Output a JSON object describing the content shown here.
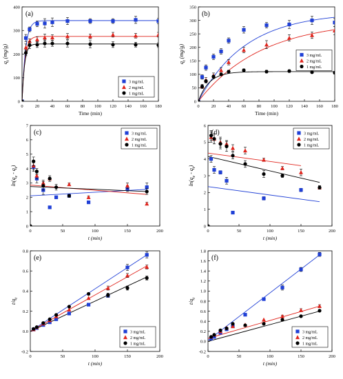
{
  "chart_data": [
    {
      "id": "a",
      "type": "scatter",
      "panel_label": "(a)",
      "xlabel": "Time (min)",
      "ylabel": "q_t (mg/g)",
      "xlim": [
        0,
        180
      ],
      "ylim": [
        0,
        400
      ],
      "xticks": [
        0,
        20,
        40,
        60,
        80,
        100,
        120,
        140,
        160,
        180
      ],
      "yticks": [
        0,
        100,
        200,
        300,
        400
      ],
      "legend": {
        "position": "bottom-right"
      },
      "series": [
        {
          "name": "3 mg/mL",
          "color": "#1f3fd6",
          "marker": "square",
          "x": [
            0,
            5,
            10,
            20,
            30,
            40,
            60,
            90,
            120,
            150,
            180
          ],
          "y": [
            0,
            268,
            305,
            328,
            330,
            335,
            340,
            340,
            340,
            345,
            340
          ],
          "err": [
            0,
            15,
            10,
            12,
            20,
            18,
            15,
            10,
            10,
            15,
            12
          ],
          "fit": {
            "kind": "pfo",
            "qe": 342,
            "k": 0.22
          }
        },
        {
          "name": "2 mg/mL",
          "color": "#e0241c",
          "marker": "triangle",
          "x": [
            0,
            5,
            10,
            20,
            30,
            40,
            60,
            90,
            120,
            150,
            180
          ],
          "y": [
            0,
            228,
            255,
            262,
            270,
            270,
            275,
            275,
            282,
            278,
            282
          ],
          "err": [
            0,
            15,
            10,
            12,
            15,
            12,
            12,
            10,
            10,
            10,
            10
          ],
          "fit": {
            "kind": "pfo",
            "qe": 275,
            "k": 0.26
          }
        },
        {
          "name": "1 mg/mL",
          "color": "#000000",
          "marker": "circle",
          "x": [
            0,
            5,
            10,
            20,
            30,
            40,
            60,
            90,
            120,
            150,
            180
          ],
          "y": [
            0,
            205,
            238,
            240,
            245,
            245,
            245,
            242,
            240,
            240,
            238
          ],
          "err": [
            0,
            12,
            15,
            12,
            15,
            12,
            15,
            15,
            12,
            10,
            10
          ],
          "fit": {
            "kind": "pfo",
            "qe": 243,
            "k": 0.3
          }
        }
      ]
    },
    {
      "id": "b",
      "type": "scatter",
      "panel_label": "(b)",
      "xlabel": "Time (min)",
      "ylabel": "q_t (mg/g)",
      "xlim": [
        0,
        180
      ],
      "ylim": [
        0,
        350
      ],
      "xticks": [
        0,
        20,
        40,
        60,
        80,
        100,
        120,
        140,
        160,
        180
      ],
      "yticks": [
        0,
        50,
        100,
        150,
        200,
        250,
        300,
        350
      ],
      "legend": {
        "position": "center-right"
      },
      "series": [
        {
          "name": "3 mg/mL",
          "color": "#1f3fd6",
          "marker": "square",
          "x": [
            0,
            5,
            10,
            20,
            30,
            40,
            60,
            90,
            120,
            150,
            180
          ],
          "y": [
            0,
            90,
            125,
            165,
            185,
            225,
            265,
            282,
            285,
            300,
            292
          ],
          "err": [
            0,
            8,
            10,
            10,
            10,
            10,
            12,
            10,
            15,
            15,
            15
          ],
          "fit": {
            "kind": "pfo",
            "qe": 330,
            "k": 0.016
          }
        },
        {
          "name": "2 mg/mL",
          "color": "#e0241c",
          "marker": "triangle",
          "x": [
            0,
            5,
            10,
            20,
            30,
            40,
            60,
            90,
            120,
            150,
            180
          ],
          "y": [
            0,
            55,
            78,
            95,
            115,
            145,
            190,
            210,
            235,
            245,
            262
          ],
          "err": [
            0,
            8,
            10,
            10,
            10,
            10,
            10,
            15,
            12,
            12,
            15
          ],
          "fit": {
            "kind": "pfo",
            "qe": 300,
            "k": 0.012
          }
        },
        {
          "name": "1 mg/mL",
          "color": "#000000",
          "marker": "circle",
          "x": [
            0,
            5,
            10,
            20,
            30,
            40,
            60,
            90,
            120,
            150,
            180
          ],
          "y": [
            0,
            55,
            75,
            92,
            100,
            110,
            115,
            110,
            112,
            108,
            106
          ],
          "err": [
            0,
            5,
            5,
            5,
            5,
            5,
            5,
            5,
            5,
            5,
            5
          ],
          "fit": {
            "kind": "pfo",
            "qe": 110,
            "k": 0.07
          }
        }
      ]
    },
    {
      "id": "c",
      "type": "scatter",
      "panel_label": "(c)",
      "xlabel": "t (min)",
      "ylabel": "ln(q_e - q_t)",
      "xlim": [
        0,
        200
      ],
      "ylim": [
        0,
        7
      ],
      "xticks": [
        0,
        50,
        100,
        150,
        200
      ],
      "yticks": [
        0,
        1,
        2,
        3,
        4,
        5,
        6,
        7
      ],
      "legend": {
        "position": "top-right"
      },
      "series": [
        {
          "name": "3 mg/mL",
          "color": "#1f3fd6",
          "marker": "square",
          "x": [
            5,
            10,
            20,
            30,
            40,
            60,
            90,
            150,
            180
          ],
          "y": [
            4.1,
            3.3,
            2.5,
            1.3,
            2.0,
            2.1,
            1.65,
            2.6,
            2.7
          ],
          "err": [
            0.3,
            0.3,
            0.3,
            0,
            0.1,
            0,
            0.1,
            0.2,
            0.3
          ],
          "fit": {
            "kind": "linear",
            "x": [
              0,
              180
            ],
            "y": [
              2.1,
              2.55
            ]
          }
        },
        {
          "name": "2 mg/mL",
          "color": "#e0241c",
          "marker": "triangle",
          "x": [
            5,
            10,
            20,
            30,
            60,
            90,
            150,
            180
          ],
          "y": [
            4.2,
            3.5,
            3.0,
            3.3,
            2.9,
            2.0,
            2.8,
            1.55
          ],
          "err": [
            0.3,
            0.2,
            0.2,
            0.1,
            0.1,
            0.1,
            0.2,
            0.1
          ],
          "fit": {
            "kind": "linear",
            "x": [
              0,
              180
            ],
            "y": [
              2.85,
              2.2
            ]
          }
        },
        {
          "name": "1 mg/mL",
          "color": "#000000",
          "marker": "circle",
          "x": [
            0,
            5,
            10,
            20,
            30,
            40,
            60,
            180
          ],
          "y": [
            0,
            4.5,
            3.8,
            2.8,
            3.3,
            2.7,
            2.1,
            2.4
          ],
          "err": [
            0,
            0.3,
            0.2,
            0.3,
            0.2,
            0.2,
            0.1,
            0.2
          ],
          "fit": {
            "kind": "linear",
            "x": [
              0,
              180
            ],
            "y": [
              2.75,
              2.4
            ]
          }
        }
      ]
    },
    {
      "id": "d",
      "type": "scatter",
      "panel_label": "(d)",
      "xlabel": "t (min)",
      "ylabel": "ln(q_e - q_t)",
      "xlim": [
        0,
        200
      ],
      "ylim": [
        0,
        6
      ],
      "xticks": [
        0,
        50,
        100,
        150,
        200
      ],
      "yticks": [
        0,
        1,
        2,
        3,
        4,
        5,
        6
      ],
      "legend": {
        "position": "top-right"
      },
      "series": [
        {
          "name": "3 mg/mL",
          "color": "#1f3fd6",
          "marker": "square",
          "x": [
            5,
            10,
            20,
            30,
            40,
            90,
            150
          ],
          "y": [
            4.0,
            3.35,
            3.2,
            2.7,
            0.8,
            1.65,
            2.15
          ],
          "err": [
            0.2,
            0.2,
            0.1,
            0.2,
            0,
            0.1,
            0.1
          ],
          "fit": {
            "kind": "linear",
            "x": [
              0,
              180
            ],
            "y": [
              2.35,
              1.45
            ]
          }
        },
        {
          "name": "2 mg/mL",
          "color": "#e0241c",
          "marker": "triangle",
          "x": [
            5,
            10,
            20,
            30,
            40,
            60,
            90,
            120,
            150,
            180
          ],
          "y": [
            5.3,
            5.2,
            5.0,
            4.9,
            4.65,
            4.5,
            3.95,
            3.45,
            3.2,
            2.3
          ],
          "err": [
            0.3,
            0.3,
            0.3,
            0.2,
            0.2,
            0.2,
            0.1,
            0.1,
            0.2,
            0.1
          ],
          "fit": {
            "kind": "linear",
            "x": [
              0,
              150
            ],
            "y": [
              4.35,
              3.6
            ]
          }
        },
        {
          "name": "1 mg/mL",
          "color": "#000000",
          "marker": "circle",
          "x": [
            0,
            5,
            10,
            20,
            30,
            40,
            60,
            90,
            120,
            180
          ],
          "y": [
            0,
            5.4,
            5.2,
            4.9,
            4.75,
            4.2,
            3.7,
            3.1,
            3.0,
            2.3
          ],
          "err": [
            0,
            0.3,
            0.3,
            0.3,
            0.3,
            0.2,
            0.2,
            0.2,
            0.1,
            0.1
          ],
          "fit": {
            "kind": "linear",
            "x": [
              0,
              180
            ],
            "y": [
              4.15,
              2.6
            ]
          }
        }
      ]
    },
    {
      "id": "e",
      "type": "scatter",
      "panel_label": "(e)",
      "xlabel": "t (min)",
      "ylabel": "t/q_t",
      "xlim": [
        0,
        200
      ],
      "ylim": [
        -0.2,
        0.8
      ],
      "xticks": [
        0,
        50,
        100,
        150,
        200
      ],
      "yticks": [
        -0.2,
        0.0,
        0.2,
        0.4,
        0.6,
        0.8
      ],
      "legend": {
        "position": "bottom-right"
      },
      "series": [
        {
          "name": "3 mg/mL",
          "color": "#1f3fd6",
          "marker": "square",
          "x": [
            5,
            10,
            20,
            30,
            40,
            60,
            90,
            120,
            150,
            180
          ],
          "y": [
            0.018,
            0.033,
            0.063,
            0.09,
            0.12,
            0.177,
            0.265,
            0.353,
            0.635,
            0.76
          ],
          "err": [
            0,
            0,
            0,
            0,
            0,
            0,
            0,
            0,
            0.03,
            0.03
          ],
          "fit": {
            "kind": "linear",
            "x": [
              0,
              180
            ],
            "y": [
              0.0,
              0.76
            ]
          }
        },
        {
          "name": "2 mg/mL",
          "color": "#e0241c",
          "marker": "triangle",
          "x": [
            5,
            10,
            20,
            30,
            40,
            60,
            90,
            120,
            150,
            180
          ],
          "y": [
            0.02,
            0.04,
            0.076,
            0.11,
            0.148,
            0.215,
            0.33,
            0.43,
            0.555,
            0.64
          ],
          "err": [
            0,
            0,
            0,
            0,
            0,
            0,
            0,
            0.02,
            0.02,
            0.02
          ],
          "fit": {
            "kind": "linear",
            "x": [
              0,
              180
            ],
            "y": [
              0.0,
              0.65
            ]
          }
        },
        {
          "name": "1 mg/mL",
          "color": "#000000",
          "marker": "circle",
          "x": [
            5,
            10,
            20,
            30,
            40,
            60,
            90,
            120,
            150,
            180
          ],
          "y": [
            0.024,
            0.042,
            0.083,
            0.12,
            0.163,
            0.245,
            0.372,
            0.36,
            0.43,
            0.53
          ],
          "err": [
            0,
            0,
            0,
            0,
            0,
            0,
            0,
            0.02,
            0.02,
            0.02
          ],
          "fit": {
            "kind": "linear",
            "x": [
              0,
              180
            ],
            "y": [
              0.0,
              0.54
            ]
          }
        }
      ]
    },
    {
      "id": "f",
      "type": "scatter",
      "panel_label": "(f)",
      "xlabel": "t (min)",
      "ylabel": "t/q_t",
      "xlim": [
        0,
        200
      ],
      "ylim": [
        -0.2,
        1.8
      ],
      "xticks": [
        0,
        50,
        100,
        150,
        200
      ],
      "yticks": [
        -0.2,
        0.0,
        0.2,
        0.4,
        0.6,
        0.8,
        1.0,
        1.2,
        1.4,
        1.6,
        1.8
      ],
      "legend": {
        "position": "bottom-right"
      },
      "series": [
        {
          "name": "3 mg/mL",
          "color": "#1f3fd6",
          "marker": "square",
          "x": [
            5,
            10,
            20,
            30,
            40,
            60,
            90,
            120,
            150,
            180
          ],
          "y": [
            0.055,
            0.09,
            0.17,
            0.24,
            0.3,
            0.53,
            0.84,
            1.07,
            1.43,
            1.73
          ],
          "err": [
            0,
            0,
            0,
            0,
            0,
            0,
            0,
            0.05,
            0.04,
            0.04
          ],
          "fit": {
            "kind": "linear",
            "x": [
              0,
              180
            ],
            "y": [
              0.02,
              1.72
            ]
          }
        },
        {
          "name": "2 mg/mL",
          "color": "#e0241c",
          "marker": "triangle",
          "x": [
            5,
            10,
            20,
            30,
            40,
            60,
            90,
            120,
            150,
            180
          ],
          "y": [
            0.09,
            0.13,
            0.2,
            0.27,
            0.3,
            0.33,
            0.43,
            0.5,
            0.62,
            0.7
          ],
          "err": [
            0,
            0,
            0,
            0,
            0,
            0,
            0,
            0.02,
            0.03,
            0.03
          ],
          "fit": {
            "kind": "linear",
            "x": [
              0,
              180
            ],
            "y": [
              0.06,
              0.7
            ]
          }
        },
        {
          "name": "1 mg/mL",
          "color": "#000000",
          "marker": "circle",
          "x": [
            5,
            10,
            20,
            30,
            40,
            60,
            90,
            120,
            150,
            180
          ],
          "y": [
            0.09,
            0.13,
            0.22,
            0.26,
            0.35,
            0.32,
            0.35,
            0.43,
            0.5,
            0.61
          ],
          "err": [
            0,
            0,
            0,
            0,
            0,
            0,
            0,
            0.02,
            0.02,
            0.02
          ],
          "fit": {
            "kind": "linear",
            "x": [
              0,
              180
            ],
            "y": [
              0.0,
              0.6
            ]
          }
        }
      ]
    }
  ]
}
